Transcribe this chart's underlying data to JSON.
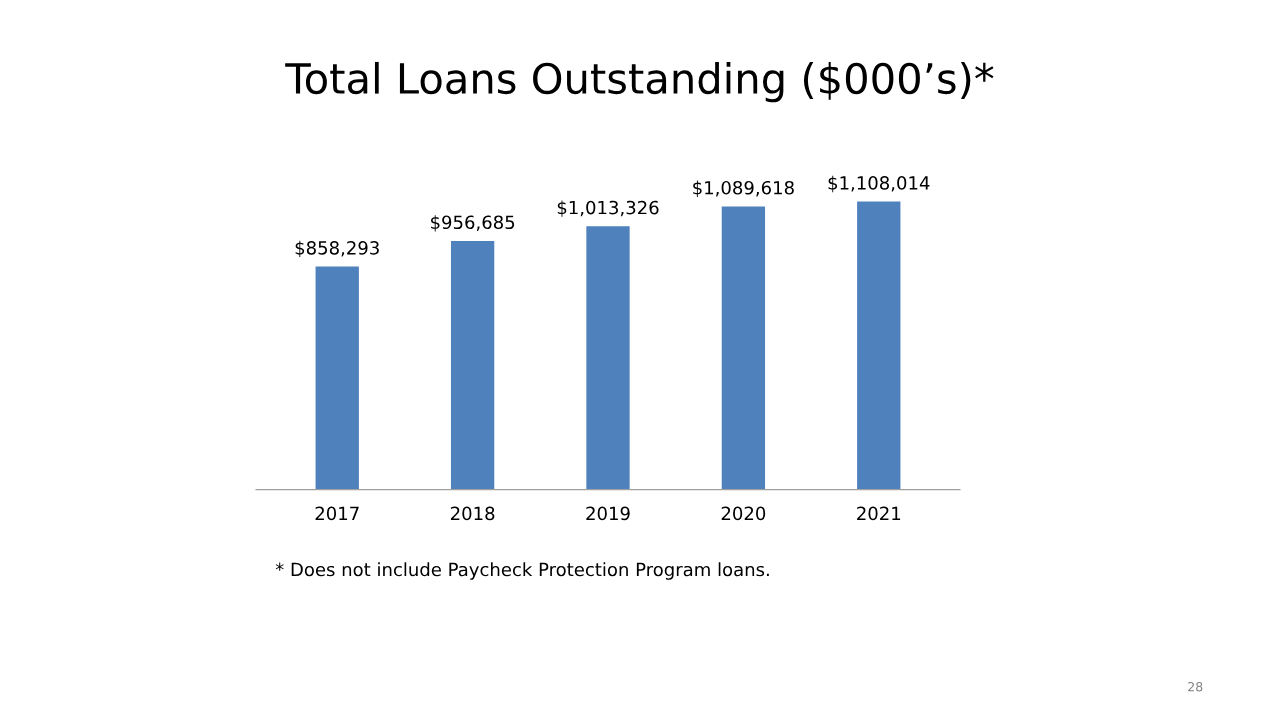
{
  "chart_data": {
    "type": "bar",
    "title": "Total Loans Outstanding ($000’s)*",
    "categories": [
      "2017",
      "2018",
      "2019",
      "2020",
      "2021"
    ],
    "values": [
      858293,
      956685,
      1013326,
      1089618,
      1108014
    ],
    "value_labels": [
      "$858,293",
      "$956,685",
      "$1,013,326",
      "$1,089,618",
      "$1,108,014"
    ],
    "color": "#4f81bd",
    "annotations": [
      "* Does not include Paycheck Protection Program loans.",
      "28"
    ]
  }
}
